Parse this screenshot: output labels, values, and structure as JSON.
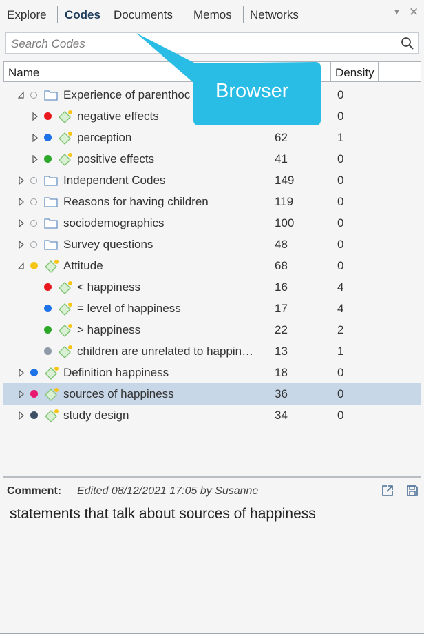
{
  "tabs": {
    "explore": "Explore",
    "codes": "Codes",
    "documents": "Documents",
    "memos": "Memos",
    "networks": "Networks"
  },
  "window_controls": {
    "menu_glyph": "▼",
    "close_glyph": "✕"
  },
  "search": {
    "placeholder": "Search Codes",
    "value": ""
  },
  "columns": {
    "name": "Name",
    "density": "Density"
  },
  "callout": {
    "text": "Browser",
    "color": "#29bde6"
  },
  "selected_row": "sources of happiness",
  "rows": [
    {
      "name": "Experience of parenthood",
      "display": "Experience of parenthoc",
      "type": "folder",
      "expanded": true,
      "level": 0,
      "grounded": "",
      "density": "0"
    },
    {
      "name": "negative effects",
      "display": "negative effects",
      "type": "code",
      "color": "#e8191e",
      "level": 1,
      "grounded": "",
      "density": "0"
    },
    {
      "name": "perception",
      "display": "perception",
      "type": "code",
      "color": "#1e73e8",
      "level": 1,
      "grounded": "62",
      "density": "1"
    },
    {
      "name": "positive effects",
      "display": "positive effects",
      "type": "code",
      "color": "#2ea82a",
      "level": 1,
      "grounded": "41",
      "density": "0"
    },
    {
      "name": "Independent Codes",
      "display": "Independent Codes",
      "type": "folder",
      "level": 0,
      "grounded": "149",
      "density": "0"
    },
    {
      "name": "Reasons for having children",
      "display": "Reasons for having children",
      "type": "folder",
      "level": 0,
      "grounded": "119",
      "density": "0"
    },
    {
      "name": "sociodemographics",
      "display": "sociodemographics",
      "type": "folder",
      "level": 0,
      "grounded": "100",
      "density": "0"
    },
    {
      "name": "Survey questions",
      "display": "Survey questions",
      "type": "folder",
      "level": 0,
      "grounded": "48",
      "density": "0"
    },
    {
      "name": "Attitude",
      "display": "Attitude",
      "type": "group",
      "color": "#f5c518",
      "expanded": true,
      "level": 0,
      "grounded": "68",
      "density": "0"
    },
    {
      "name": "< happiness",
      "display": "< happiness",
      "type": "code",
      "color": "#e8191e",
      "level": 1,
      "grounded": "16",
      "density": "4"
    },
    {
      "name": "= level of happiness",
      "display": "= level of happiness",
      "type": "code",
      "color": "#1e73e8",
      "level": 1,
      "grounded": "17",
      "density": "4"
    },
    {
      "name": "> happiness",
      "display": "> happiness",
      "type": "code",
      "color": "#2ea82a",
      "level": 1,
      "grounded": "22",
      "density": "2"
    },
    {
      "name": "children are unrelated to happiness",
      "display": "children are unrelated to happin…",
      "type": "code",
      "color": "#8e9aa8",
      "level": 1,
      "grounded": "13",
      "density": "1"
    },
    {
      "name": "Definition happiness",
      "display": "Definition happiness",
      "type": "code",
      "color": "#1e73e8",
      "level": 0,
      "grounded": "18",
      "density": "0"
    },
    {
      "name": "sources of happiness",
      "display": "sources of happiness",
      "type": "code",
      "color": "#e8196e",
      "level": 0,
      "grounded": "36",
      "density": "0"
    },
    {
      "name": "study design",
      "display": "study design",
      "type": "code",
      "color": "#3e4f63",
      "level": 0,
      "grounded": "34",
      "density": "0"
    }
  ],
  "comment": {
    "label": "Comment:",
    "meta": "Edited 08/12/2021 17:05 by Susanne",
    "text": "statements that talk about sources of happiness"
  }
}
